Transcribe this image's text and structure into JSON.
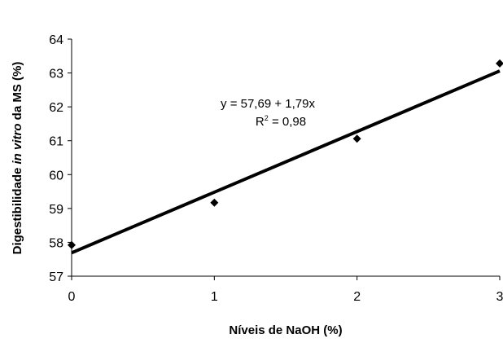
{
  "chart_data": {
    "type": "scatter",
    "xlabel": "Níveis de NaOH (%)",
    "ylabel_parts": [
      "Digestibilidade ",
      "in vitro",
      " da MS (%)"
    ],
    "xlim": [
      0,
      3
    ],
    "ylim": [
      57,
      64
    ],
    "xticks": [
      "0",
      "1",
      "2",
      "3"
    ],
    "yticks": [
      "57",
      "58",
      "59",
      "60",
      "61",
      "62",
      "63",
      "64"
    ],
    "series": [
      {
        "x": [
          0,
          1,
          2,
          3
        ],
        "y": [
          57.92,
          59.17,
          61.06,
          63.28
        ]
      }
    ],
    "trendline": {
      "intercept": 57.69,
      "slope": 1.79,
      "equation": "y = 57,69 + 1,79x",
      "r2_prefix": "R",
      "r2_sup": "2",
      "r2_suffix": " = 0,98"
    },
    "grid": false,
    "legend": false,
    "marker": "diamond",
    "color": "#000000"
  }
}
